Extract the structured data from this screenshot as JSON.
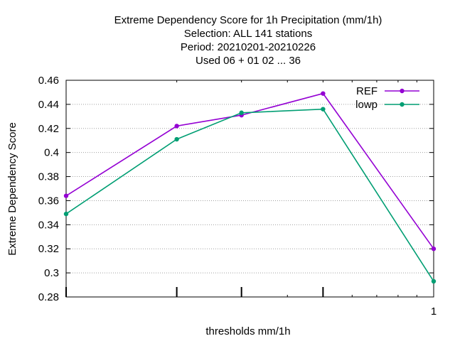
{
  "chart_data": {
    "type": "line",
    "title_lines": [
      "Extreme Dependency Score  for 1h Precipitation (mm/1h)",
      "Selection: ALL    141 stations",
      "Period: 20210201-20210226",
      "Used  06  + 01 02 ... 36"
    ],
    "xlabel": "thresholds mm/1h",
    "ylabel": "Extreme Dependency Score",
    "x_scale": "log",
    "xlim": [
      0.1,
      1
    ],
    "ylim": [
      0.28,
      0.46
    ],
    "x_tick_labels": [
      {
        "x": 1,
        "label": "1"
      }
    ],
    "y_ticks": [
      "0.28",
      "0.3",
      "0.32",
      "0.34",
      "0.36",
      "0.38",
      "0.4",
      "0.42",
      "0.44",
      "0.46"
    ],
    "grid": true,
    "legend_position": "top-right",
    "series": [
      {
        "name": "REF",
        "color": "#9400d3",
        "points": [
          [
            0.1,
            0.364
          ],
          [
            0.2,
            0.422
          ],
          [
            0.3,
            0.431
          ],
          [
            0.5,
            0.449
          ],
          [
            1,
            0.32
          ]
        ]
      },
      {
        "name": "lowp",
        "color": "#009e73",
        "points": [
          [
            0.1,
            0.349
          ],
          [
            0.2,
            0.411
          ],
          [
            0.3,
            0.433
          ],
          [
            0.5,
            0.436
          ],
          [
            1,
            0.293
          ]
        ]
      }
    ]
  }
}
